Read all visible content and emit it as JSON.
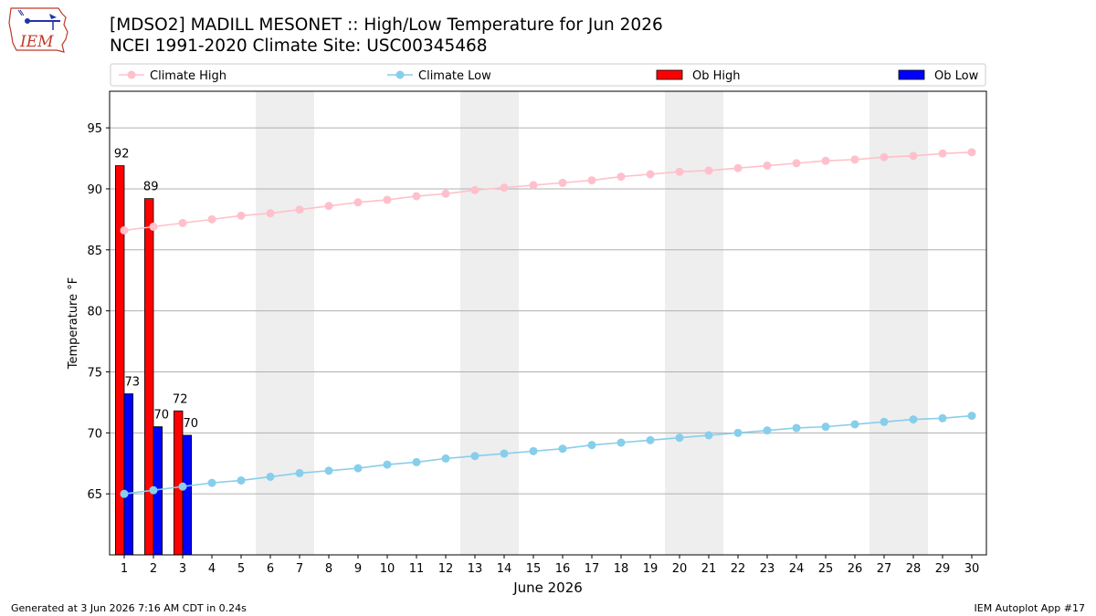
{
  "header": {
    "title": "[MDSO2] MADILL MESONET :: High/Low Temperature for Jun 2026",
    "subtitle": "NCEI 1991-2020 Climate Site: USC00345468",
    "logo_text": "IEM"
  },
  "footer": {
    "left": "Generated at 3 Jun 2026 7:16 AM CDT in 0.24s",
    "right": "IEM Autoplot App #17"
  },
  "chart_data": {
    "type": "bar",
    "xlabel": "June 2026",
    "ylabel": "Temperature °F",
    "xlim": [
      0.5,
      30.5
    ],
    "ylim": [
      60,
      98
    ],
    "yticks": [
      65,
      70,
      75,
      80,
      85,
      90,
      95
    ],
    "grid": "horizontal",
    "legend_placement": "top",
    "weekend_shading": [
      [
        5.5,
        7.5
      ],
      [
        12.5,
        14.5
      ],
      [
        19.5,
        21.5
      ],
      [
        26.5,
        28.5
      ]
    ],
    "days": [
      1,
      2,
      3,
      4,
      5,
      6,
      7,
      8,
      9,
      10,
      11,
      12,
      13,
      14,
      15,
      16,
      17,
      18,
      19,
      20,
      21,
      22,
      23,
      24,
      25,
      26,
      27,
      28,
      29,
      30
    ],
    "series": [
      {
        "name": "Climate High",
        "kind": "line",
        "color": "#ffc0cb",
        "values": [
          86.6,
          86.9,
          87.2,
          87.5,
          87.8,
          88.0,
          88.3,
          88.6,
          88.9,
          89.1,
          89.4,
          89.6,
          89.9,
          90.1,
          90.3,
          90.5,
          90.7,
          91.0,
          91.2,
          91.4,
          91.5,
          91.7,
          91.9,
          92.1,
          92.3,
          92.4,
          92.6,
          92.7,
          92.9,
          93.0
        ]
      },
      {
        "name": "Climate Low",
        "kind": "line",
        "color": "#87ceeb",
        "values": [
          65.0,
          65.3,
          65.6,
          65.9,
          66.1,
          66.4,
          66.7,
          66.9,
          67.1,
          67.4,
          67.6,
          67.9,
          68.1,
          68.3,
          68.5,
          68.7,
          69.0,
          69.2,
          69.4,
          69.6,
          69.8,
          70.0,
          70.2,
          70.4,
          70.5,
          70.7,
          70.9,
          71.1,
          71.2,
          71.4
        ]
      },
      {
        "name": "Ob High",
        "kind": "bar",
        "color": "#ff0000",
        "labels": [
          "92",
          "89",
          "72"
        ],
        "values": [
          91.9,
          89.2,
          71.8
        ]
      },
      {
        "name": "Ob Low",
        "kind": "bar",
        "color": "#0000ff",
        "labels": [
          "73",
          "70",
          "70"
        ],
        "values": [
          73.2,
          70.5,
          69.8
        ]
      }
    ]
  }
}
